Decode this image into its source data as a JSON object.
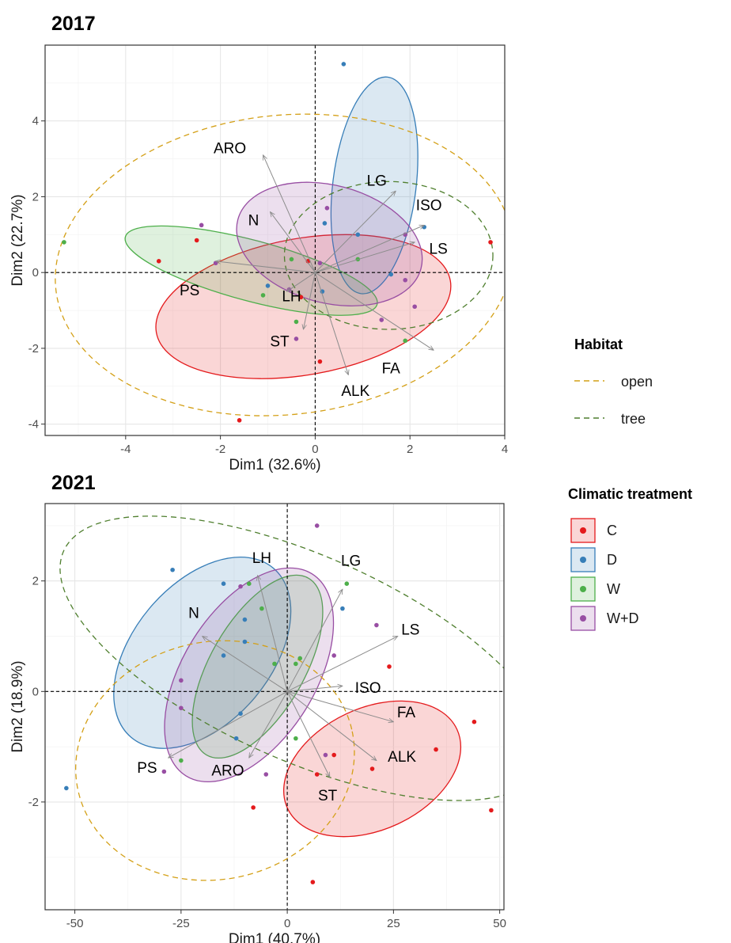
{
  "chart_data": [
    {
      "type": "scatter",
      "subtype": "pca-biplot",
      "title": "2017",
      "xlabel": "Dim1 (32.6%)",
      "ylabel": "Dim2 (22.7%)",
      "xlim": [
        -5.7,
        4.0
      ],
      "ylim": [
        -4.3,
        6.0
      ],
      "xticks": [
        -4,
        -2,
        0,
        2,
        4
      ],
      "yticks": [
        -4,
        -2,
        0,
        2,
        4
      ],
      "grid": true,
      "points": [
        {
          "x": 0.6,
          "y": 5.5,
          "group": "D"
        },
        {
          "x": 3.7,
          "y": 0.8,
          "group": "C"
        },
        {
          "x": -1.6,
          "y": -3.9,
          "group": "C"
        },
        {
          "x": -5.3,
          "y": 0.8,
          "group": "W"
        },
        {
          "x": -3.3,
          "y": 0.3,
          "group": "C"
        },
        {
          "x": -2.5,
          "y": 0.85,
          "group": "C"
        },
        {
          "x": -2.4,
          "y": 1.25,
          "group": "W+D"
        },
        {
          "x": -2.1,
          "y": 0.25,
          "group": "W+D"
        },
        {
          "x": 0.2,
          "y": 1.3,
          "group": "D"
        },
        {
          "x": 0.25,
          "y": 1.7,
          "group": "W+D"
        },
        {
          "x": 0.9,
          "y": 1.0,
          "group": "D"
        },
        {
          "x": 2.3,
          "y": 1.2,
          "group": "D"
        },
        {
          "x": 1.9,
          "y": 1.0,
          "group": "W+D"
        },
        {
          "x": 0.9,
          "y": 0.35,
          "group": "W"
        },
        {
          "x": 1.6,
          "y": -0.05,
          "group": "D"
        },
        {
          "x": 1.9,
          "y": -0.2,
          "group": "W+D"
        },
        {
          "x": 2.1,
          "y": -0.9,
          "group": "W+D"
        },
        {
          "x": 1.4,
          "y": -1.25,
          "group": "W+D"
        },
        {
          "x": 1.9,
          "y": -1.8,
          "group": "W"
        },
        {
          "x": -0.5,
          "y": 0.35,
          "group": "W"
        },
        {
          "x": -0.15,
          "y": 0.3,
          "group": "C"
        },
        {
          "x": 0.1,
          "y": 0.25,
          "group": "W+D"
        },
        {
          "x": -1.0,
          "y": -0.35,
          "group": "D"
        },
        {
          "x": -1.1,
          "y": -0.6,
          "group": "W"
        },
        {
          "x": -0.3,
          "y": -0.65,
          "group": "C"
        },
        {
          "x": -0.4,
          "y": -1.3,
          "group": "W"
        },
        {
          "x": -0.4,
          "y": -1.75,
          "group": "W+D"
        },
        {
          "x": 0.15,
          "y": -0.5,
          "group": "D"
        },
        {
          "x": 0.1,
          "y": -2.35,
          "group": "C"
        },
        {
          "x": -0.55,
          "y": -0.45,
          "group": "W+D"
        }
      ],
      "treatment_ellipses": [
        {
          "group": "C",
          "cx": -0.25,
          "cy": -0.9,
          "rx": 3.15,
          "ry": 1.8,
          "angle": 10
        },
        {
          "group": "D",
          "cx": 1.25,
          "cy": 2.3,
          "rx": 2.3,
          "ry": 1.1,
          "angle": 83
        },
        {
          "group": "W",
          "cx": -1.35,
          "cy": 0.05,
          "rx": 2.75,
          "ry": 0.8,
          "angle": -15
        },
        {
          "group": "W+D",
          "cx": 0.3,
          "cy": 0.75,
          "rx": 2.0,
          "ry": 1.55,
          "angle": -15
        }
      ],
      "habitat_ellipses": [
        {
          "group": "open",
          "cx": -0.65,
          "cy": 0.2,
          "rx": 4.85,
          "ry": 3.95,
          "angle": 6
        },
        {
          "group": "tree",
          "cx": 1.55,
          "cy": 0.45,
          "rx": 2.2,
          "ry": 1.95,
          "angle": 0
        }
      ],
      "vectors": [
        {
          "label": "ARO",
          "x": -1.1,
          "y": 3.1
        },
        {
          "label": "LG",
          "x": 1.7,
          "y": 2.15
        },
        {
          "label": "ISO",
          "x": 2.3,
          "y": 1.25
        },
        {
          "label": "N",
          "x": -0.95,
          "y": 1.6
        },
        {
          "label": "LS",
          "x": 2.1,
          "y": 0.8
        },
        {
          "label": "PS",
          "x": -2.1,
          "y": 0.3
        },
        {
          "label": "LH",
          "x": -0.6,
          "y": -0.5
        },
        {
          "label": "ST",
          "x": -0.25,
          "y": -1.5
        },
        {
          "label": "FA",
          "x": 2.5,
          "y": -2.05
        },
        {
          "label": "ALK",
          "x": 0.7,
          "y": -2.7
        }
      ],
      "var_labels": [
        {
          "label": "ARO",
          "x": -1.8,
          "y": 3.25
        },
        {
          "label": "LG",
          "x": 1.3,
          "y": 2.4
        },
        {
          "label": "ISO",
          "x": 2.4,
          "y": 1.75
        },
        {
          "label": "N",
          "x": -1.3,
          "y": 1.35
        },
        {
          "label": "LS",
          "x": 2.6,
          "y": 0.6
        },
        {
          "label": "PS",
          "x": -2.65,
          "y": -0.5
        },
        {
          "label": "LH",
          "x": -0.5,
          "y": -0.65
        },
        {
          "label": "ST",
          "x": -0.75,
          "y": -1.85
        },
        {
          "label": "FA",
          "x": 1.6,
          "y": -2.55
        },
        {
          "label": "ALK",
          "x": 0.85,
          "y": -3.15
        }
      ]
    },
    {
      "type": "scatter",
      "subtype": "pca-biplot",
      "title": "2021",
      "xlabel": "Dim1 (40.7%)",
      "ylabel": "Dim2 (18.9%)",
      "xlim": [
        -57,
        51
      ],
      "ylim": [
        -3.95,
        3.4
      ],
      "xticks": [
        -50,
        -25,
        0,
        25,
        50
      ],
      "yticks": [
        -2,
        0,
        2
      ],
      "grid": true,
      "points": [
        {
          "x": -52,
          "y": -1.75,
          "group": "D"
        },
        {
          "x": -27,
          "y": 2.2,
          "group": "D"
        },
        {
          "x": -29,
          "y": -1.45,
          "group": "W+D"
        },
        {
          "x": -25,
          "y": -1.25,
          "group": "W"
        },
        {
          "x": -25,
          "y": 0.2,
          "group": "W+D"
        },
        {
          "x": -25,
          "y": -0.3,
          "group": "W+D"
        },
        {
          "x": -15,
          "y": 1.95,
          "group": "D"
        },
        {
          "x": -15,
          "y": 0.65,
          "group": "D"
        },
        {
          "x": -9,
          "y": 1.95,
          "group": "W"
        },
        {
          "x": -10,
          "y": 1.3,
          "group": "D"
        },
        {
          "x": -10,
          "y": 0.9,
          "group": "D"
        },
        {
          "x": -6,
          "y": 1.5,
          "group": "W"
        },
        {
          "x": -11,
          "y": 1.9,
          "group": "W+D"
        },
        {
          "x": -3,
          "y": 0.5,
          "group": "W"
        },
        {
          "x": 2,
          "y": 0.5,
          "group": "W"
        },
        {
          "x": 3,
          "y": 0.6,
          "group": "W"
        },
        {
          "x": -12,
          "y": -0.85,
          "group": "D"
        },
        {
          "x": -11,
          "y": -0.4,
          "group": "D"
        },
        {
          "x": -5,
          "y": -1.5,
          "group": "W+D"
        },
        {
          "x": -8,
          "y": -2.1,
          "group": "C"
        },
        {
          "x": 7,
          "y": 3.0,
          "group": "W+D"
        },
        {
          "x": 13,
          "y": 1.5,
          "group": "D"
        },
        {
          "x": 14,
          "y": 1.95,
          "group": "W"
        },
        {
          "x": 21,
          "y": 1.2,
          "group": "W+D"
        },
        {
          "x": 11,
          "y": 0.65,
          "group": "W+D"
        },
        {
          "x": 24,
          "y": 0.45,
          "group": "C"
        },
        {
          "x": 9,
          "y": -1.15,
          "group": "W+D"
        },
        {
          "x": 11,
          "y": -1.15,
          "group": "C"
        },
        {
          "x": 7,
          "y": -1.5,
          "group": "C"
        },
        {
          "x": 20,
          "y": -1.4,
          "group": "C"
        },
        {
          "x": 35,
          "y": -1.05,
          "group": "C"
        },
        {
          "x": 44,
          "y": -0.55,
          "group": "C"
        },
        {
          "x": 48,
          "y": -2.15,
          "group": "C"
        },
        {
          "x": 6,
          "y": -3.45,
          "group": "C"
        },
        {
          "x": 2,
          "y": -0.85,
          "group": "W"
        }
      ],
      "treatment_ellipses": [
        {
          "group": "C",
          "cx": 20,
          "cy": -1.4,
          "rx": 22,
          "ry": 1.1,
          "angle": 25
        },
        {
          "group": "D",
          "cx": -20,
          "cy": 0.7,
          "rx": 26,
          "ry": 1.25,
          "angle": 50
        },
        {
          "group": "W",
          "cx": -7,
          "cy": 0.45,
          "rx": 24,
          "ry": 0.85,
          "angle": 60
        },
        {
          "group": "W+D",
          "cx": -9,
          "cy": 0.3,
          "rx": 28,
          "ry": 1.2,
          "angle": 58
        }
      ],
      "habitat_ellipses": [
        {
          "group": "open",
          "cx": -17,
          "cy": -1.25,
          "rx": 33,
          "ry": 2.15,
          "angle": 12
        },
        {
          "group": "tree",
          "cx": 4,
          "cy": 0.6,
          "rx": 62,
          "ry": 1.85,
          "angle": -24
        }
      ],
      "vectors": [
        {
          "label": "LH",
          "x": -7,
          "y": 2.1
        },
        {
          "label": "LG",
          "x": 13,
          "y": 1.85
        },
        {
          "label": "N",
          "x": -20,
          "y": 1.0
        },
        {
          "label": "LS",
          "x": 26,
          "y": 1.0
        },
        {
          "label": "ISO",
          "x": 13,
          "y": 0.1
        },
        {
          "label": "FA",
          "x": 25,
          "y": -0.55
        },
        {
          "label": "ALK",
          "x": 21,
          "y": -1.25
        },
        {
          "label": "PS",
          "x": -28,
          "y": -1.2
        },
        {
          "label": "ARO",
          "x": -9,
          "y": -1.2
        },
        {
          "label": "ST",
          "x": 10,
          "y": -1.55
        }
      ],
      "var_labels": [
        {
          "label": "LH",
          "x": -6,
          "y": 2.4
        },
        {
          "label": "LG",
          "x": 15,
          "y": 2.35
        },
        {
          "label": "N",
          "x": -22,
          "y": 1.4
        },
        {
          "label": "LS",
          "x": 29,
          "y": 1.1
        },
        {
          "label": "ISO",
          "x": 19,
          "y": 0.05
        },
        {
          "label": "FA",
          "x": 28,
          "y": -0.4
        },
        {
          "label": "ALK",
          "x": 27,
          "y": -1.2
        },
        {
          "label": "PS",
          "x": -33,
          "y": -1.4
        },
        {
          "label": "ARO",
          "x": -14,
          "y": -1.45
        },
        {
          "label": "ST",
          "x": 9.5,
          "y": -1.9
        }
      ]
    }
  ],
  "legend": {
    "habitat": {
      "title": "Habitat",
      "items": [
        {
          "name": "open",
          "color": "#d4a017"
        },
        {
          "name": "tree",
          "color": "#4f7f2e"
        }
      ]
    },
    "treatment": {
      "title": "Climatic treatment",
      "items": [
        {
          "name": "C",
          "color": "#e41a1c"
        },
        {
          "name": "D",
          "color": "#377eb8"
        },
        {
          "name": "W",
          "color": "#4daf4a"
        },
        {
          "name": "W+D",
          "color": "#984ea3"
        }
      ]
    }
  },
  "colors": {
    "C": "#e41a1c",
    "D": "#377eb8",
    "W": "#4daf4a",
    "W+D": "#984ea3",
    "open": "#d4a017",
    "tree": "#4f7f2e"
  }
}
